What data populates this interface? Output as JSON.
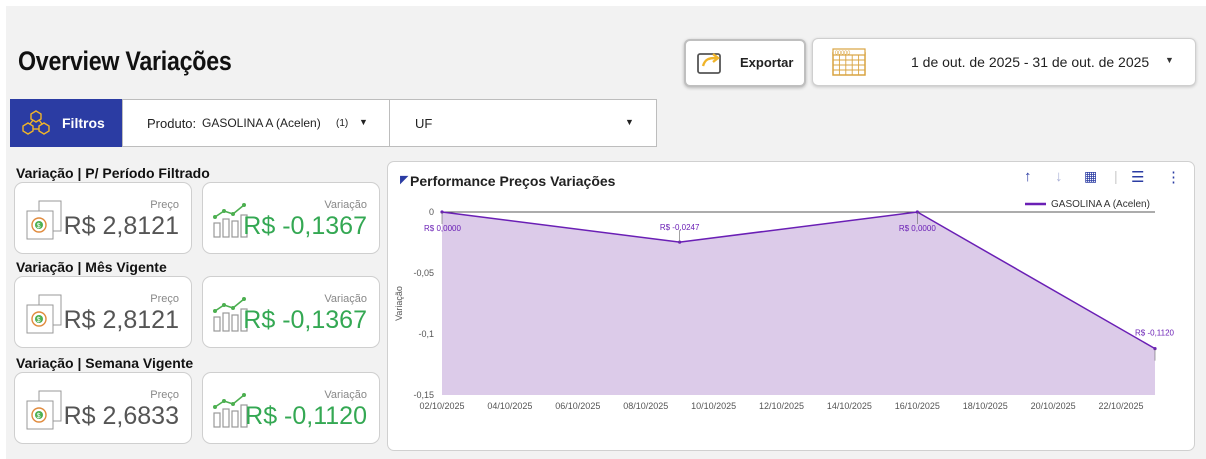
{
  "header": {
    "title": "Overview Variações",
    "export_label": "Exportar",
    "date_range": "1 de out. de 2025 - 31 de out. de 2025"
  },
  "filters": {
    "button_label": "Filtros",
    "produto": {
      "label": "Produto:",
      "value": "GASOLINA A (Acelen)",
      "count": "(1)"
    },
    "uf": {
      "value": "UF"
    }
  },
  "sections": [
    {
      "title": "Variação | P/ Período Filtrado",
      "price_label": "Preço",
      "price_value": "R$ 2,8121",
      "var_label": "Variação",
      "var_value": "R$ -0,1367"
    },
    {
      "title": "Variação | Mês Vigente",
      "price_label": "Preço",
      "price_value": "R$ 2,8121",
      "var_label": "Variação",
      "var_value": "R$ -0,1367"
    },
    {
      "title": "Variação | Semana Vigente",
      "price_label": "Preço",
      "price_value": "R$ 2,6833",
      "var_label": "Variação",
      "var_value": "R$ -0,1120"
    }
  ],
  "chart_data": {
    "type": "area",
    "title": "Performance Preços Variações",
    "xlabel": "",
    "ylabel": "Variação",
    "ylim": [
      -0.15,
      0
    ],
    "y_ticks": [
      "0",
      "-0,05",
      "-0,1",
      "-0,15"
    ],
    "x_ticks": [
      "02/10/2025",
      "04/10/2025",
      "06/10/2025",
      "08/10/2025",
      "10/10/2025",
      "12/10/2025",
      "14/10/2025",
      "16/10/2025",
      "18/10/2025",
      "20/10/2025",
      "22/10/2025"
    ],
    "series": [
      {
        "name": "GASOLINA A (Acelen)",
        "color": "#6a1fb5",
        "fill": "#dccbe9",
        "points": [
          {
            "x": "02/10/2025",
            "y": 0.0,
            "label": "R$ 0,0000"
          },
          {
            "x": "09/10/2025",
            "y": -0.0247,
            "label": "R$ -0,0247"
          },
          {
            "x": "16/10/2025",
            "y": 0.0,
            "label": "R$ 0,0000"
          },
          {
            "x": "23/10/2025",
            "y": -0.112,
            "label": "R$ -0,1120"
          }
        ]
      }
    ],
    "legend": "top-right",
    "grid": false
  },
  "colors": {
    "accent": "#2b3ca3",
    "positive": "#34a853",
    "series": "#6a1fb5"
  },
  "icons": [
    "export-icon",
    "calendar-icon",
    "filter-network-icon",
    "price-tag-icon",
    "growth-chart-icon"
  ]
}
